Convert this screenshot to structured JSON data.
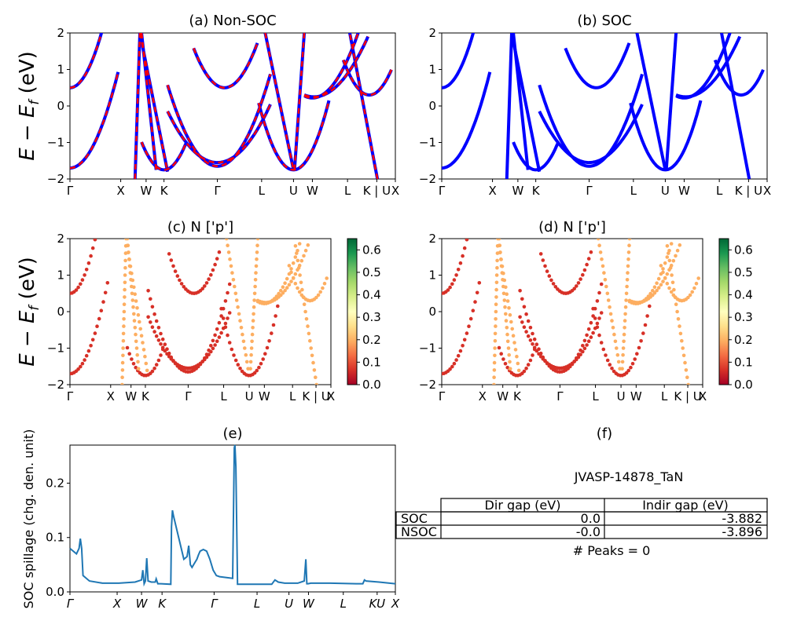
{
  "chart_data": [
    {
      "id": "a",
      "type": "line",
      "title": "(a) Non-SOC",
      "ylabel": "$E - E_f$ (eV)",
      "ylim": [
        -2,
        2
      ],
      "yticks": [
        "-2",
        "-1",
        "0",
        "1",
        "2"
      ],
      "xticklabels": [
        "Γ",
        "X",
        "W",
        "K",
        "Γ",
        "L",
        "U",
        "W",
        "L",
        "K | U",
        "X"
      ],
      "series": [
        {
          "color": "#0000ff",
          "dashed": false
        },
        {
          "color": "#ff0000",
          "dashed": true
        }
      ]
    },
    {
      "id": "b",
      "type": "line",
      "title": "(b) SOC",
      "ylim": [
        -2,
        2
      ],
      "yticks": [
        "-2",
        "-1",
        "0",
        "1",
        "2"
      ],
      "xticklabels": [
        "Γ",
        "X",
        "W",
        "K",
        "Γ",
        "L",
        "U",
        "W",
        "L",
        "K | U",
        "X"
      ],
      "series": [
        {
          "color": "#0000ff",
          "dashed": false
        }
      ]
    },
    {
      "id": "c",
      "type": "scatter",
      "title": "(c)  N ['p']",
      "ylabel": "$E - E_f$ (eV)",
      "ylim": [
        -2,
        2
      ],
      "yticks": [
        "-2",
        "-1",
        "0",
        "1",
        "2"
      ],
      "xticklabels": [
        "Γ",
        "X",
        "W",
        "K",
        "Γ",
        "L",
        "U",
        "W",
        "L",
        "K | U",
        "X"
      ],
      "colorbar": {
        "cmap": "RdYlGn",
        "range": [
          0.0,
          0.65
        ],
        "ticks": [
          "0.0",
          "0.1",
          "0.2",
          "0.3",
          "0.4",
          "0.5",
          "0.6"
        ]
      }
    },
    {
      "id": "d",
      "type": "scatter",
      "title": "(d) N ['p']",
      "ylim": [
        -2,
        2
      ],
      "yticks": [
        "-2",
        "-1",
        "0",
        "1",
        "2"
      ],
      "xticklabels": [
        "Γ",
        "X",
        "W",
        "K",
        "Γ",
        "L",
        "U",
        "W",
        "L",
        "K | U",
        "X"
      ],
      "colorbar": {
        "cmap": "RdYlGn",
        "range": [
          0.0,
          0.65
        ],
        "ticks": [
          "0.0",
          "0.1",
          "0.2",
          "0.3",
          "0.4",
          "0.5",
          "0.6"
        ]
      }
    },
    {
      "id": "e",
      "type": "line",
      "title": "(e)",
      "ylabel": "SOC spillage (chg. den. unit)",
      "ylim": [
        0,
        0.27
      ],
      "yticks": [
        "0.0",
        "0.1",
        "0.2"
      ],
      "xticklabels": [
        "Γ",
        "X",
        "W",
        "K",
        "Γ",
        "L",
        "U",
        "W",
        "L",
        "KU",
        "X"
      ],
      "color": "#1f77b4",
      "x": [
        0,
        0.02,
        0.028,
        0.032,
        0.036,
        0.04,
        0.06,
        0.1,
        0.15,
        0.2,
        0.22,
        0.224,
        0.228,
        0.232,
        0.236,
        0.24,
        0.25,
        0.262,
        0.265,
        0.27,
        0.28,
        0.31,
        0.312,
        0.315,
        0.318,
        0.35,
        0.36,
        0.365,
        0.37,
        0.375,
        0.38,
        0.385,
        0.39,
        0.395,
        0.4,
        0.41,
        0.42,
        0.43,
        0.44,
        0.45,
        0.46,
        0.5,
        0.505,
        0.507,
        0.51,
        0.515,
        0.52,
        0.56,
        0.62,
        0.63,
        0.635,
        0.64,
        0.66,
        0.7,
        0.72,
        0.725,
        0.728,
        0.732,
        0.74,
        0.8,
        0.88,
        0.9,
        0.905,
        0.91,
        0.95,
        1.0
      ],
      "y": [
        0.08,
        0.07,
        0.08,
        0.098,
        0.08,
        0.03,
        0.02,
        0.016,
        0.016,
        0.018,
        0.022,
        0.04,
        0.015,
        0.02,
        0.062,
        0.02,
        0.018,
        0.018,
        0.024,
        0.015,
        0.015,
        0.014,
        0.12,
        0.15,
        0.14,
        0.06,
        0.065,
        0.085,
        0.05,
        0.045,
        0.05,
        0.055,
        0.06,
        0.068,
        0.075,
        0.078,
        0.075,
        0.06,
        0.04,
        0.03,
        0.028,
        0.025,
        0.265,
        0.27,
        0.23,
        0.014,
        0.014,
        0.014,
        0.014,
        0.022,
        0.02,
        0.018,
        0.016,
        0.016,
        0.02,
        0.06,
        0.015,
        0.015,
        0.016,
        0.016,
        0.015,
        0.015,
        0.022,
        0.02,
        0.018,
        0.015
      ]
    }
  ],
  "table": {
    "panel_title": "(f)",
    "title": "JVASP-14878_TaN",
    "headers": [
      "Dir gap (eV)",
      "Indir gap (eV)"
    ],
    "rows": [
      {
        "label": "SOC",
        "dir": "0.0",
        "indir": "-3.882"
      },
      {
        "label": "NSOC",
        "dir": "-0.0",
        "indir": "-3.896"
      }
    ],
    "footer": "# Peaks = 0"
  }
}
